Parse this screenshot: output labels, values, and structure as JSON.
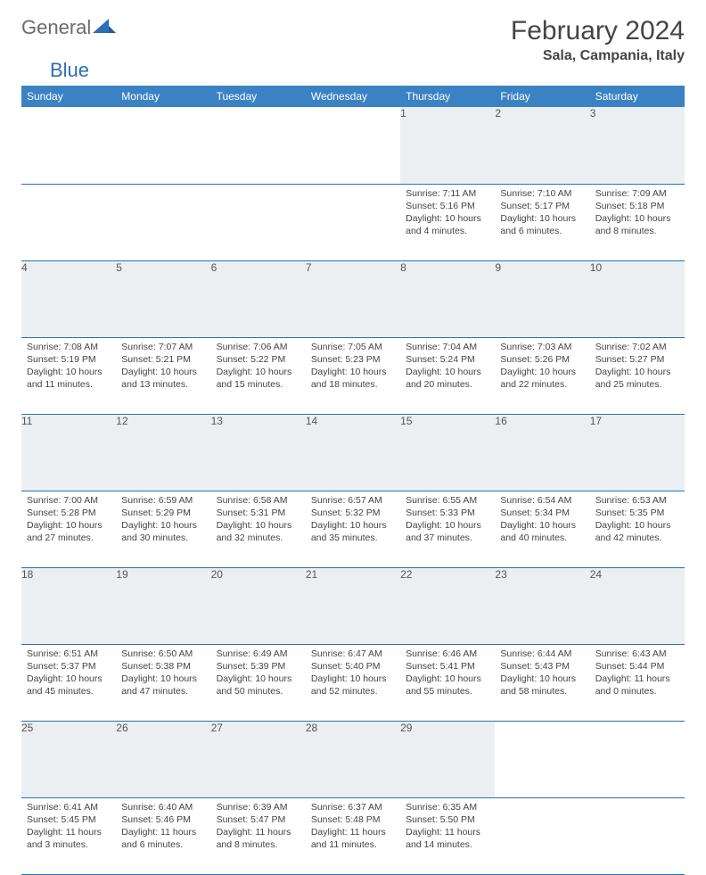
{
  "logo": {
    "part1": "General",
    "part2": "Blue"
  },
  "title": "February 2024",
  "location": "Sala, Campania, Italy",
  "colors": {
    "header_bg": "#3b82c4",
    "header_text": "#ffffff",
    "daynum_bg": "#eceff1",
    "row_border": "#2b6fb5",
    "logo_gray": "#6b6b6b",
    "logo_blue": "#2b6fb5"
  },
  "weekdays": [
    "Sunday",
    "Monday",
    "Tuesday",
    "Wednesday",
    "Thursday",
    "Friday",
    "Saturday"
  ],
  "weeks": [
    {
      "nums": [
        "",
        "",
        "",
        "",
        "1",
        "2",
        "3"
      ],
      "cells": [
        null,
        null,
        null,
        null,
        {
          "sr": "Sunrise: 7:11 AM",
          "ss": "Sunset: 5:16 PM",
          "dl": "Daylight: 10 hours and 4 minutes."
        },
        {
          "sr": "Sunrise: 7:10 AM",
          "ss": "Sunset: 5:17 PM",
          "dl": "Daylight: 10 hours and 6 minutes."
        },
        {
          "sr": "Sunrise: 7:09 AM",
          "ss": "Sunset: 5:18 PM",
          "dl": "Daylight: 10 hours and 8 minutes."
        }
      ]
    },
    {
      "nums": [
        "4",
        "5",
        "6",
        "7",
        "8",
        "9",
        "10"
      ],
      "cells": [
        {
          "sr": "Sunrise: 7:08 AM",
          "ss": "Sunset: 5:19 PM",
          "dl": "Daylight: 10 hours and 11 minutes."
        },
        {
          "sr": "Sunrise: 7:07 AM",
          "ss": "Sunset: 5:21 PM",
          "dl": "Daylight: 10 hours and 13 minutes."
        },
        {
          "sr": "Sunrise: 7:06 AM",
          "ss": "Sunset: 5:22 PM",
          "dl": "Daylight: 10 hours and 15 minutes."
        },
        {
          "sr": "Sunrise: 7:05 AM",
          "ss": "Sunset: 5:23 PM",
          "dl": "Daylight: 10 hours and 18 minutes."
        },
        {
          "sr": "Sunrise: 7:04 AM",
          "ss": "Sunset: 5:24 PM",
          "dl": "Daylight: 10 hours and 20 minutes."
        },
        {
          "sr": "Sunrise: 7:03 AM",
          "ss": "Sunset: 5:26 PM",
          "dl": "Daylight: 10 hours and 22 minutes."
        },
        {
          "sr": "Sunrise: 7:02 AM",
          "ss": "Sunset: 5:27 PM",
          "dl": "Daylight: 10 hours and 25 minutes."
        }
      ]
    },
    {
      "nums": [
        "11",
        "12",
        "13",
        "14",
        "15",
        "16",
        "17"
      ],
      "cells": [
        {
          "sr": "Sunrise: 7:00 AM",
          "ss": "Sunset: 5:28 PM",
          "dl": "Daylight: 10 hours and 27 minutes."
        },
        {
          "sr": "Sunrise: 6:59 AM",
          "ss": "Sunset: 5:29 PM",
          "dl": "Daylight: 10 hours and 30 minutes."
        },
        {
          "sr": "Sunrise: 6:58 AM",
          "ss": "Sunset: 5:31 PM",
          "dl": "Daylight: 10 hours and 32 minutes."
        },
        {
          "sr": "Sunrise: 6:57 AM",
          "ss": "Sunset: 5:32 PM",
          "dl": "Daylight: 10 hours and 35 minutes."
        },
        {
          "sr": "Sunrise: 6:55 AM",
          "ss": "Sunset: 5:33 PM",
          "dl": "Daylight: 10 hours and 37 minutes."
        },
        {
          "sr": "Sunrise: 6:54 AM",
          "ss": "Sunset: 5:34 PM",
          "dl": "Daylight: 10 hours and 40 minutes."
        },
        {
          "sr": "Sunrise: 6:53 AM",
          "ss": "Sunset: 5:35 PM",
          "dl": "Daylight: 10 hours and 42 minutes."
        }
      ]
    },
    {
      "nums": [
        "18",
        "19",
        "20",
        "21",
        "22",
        "23",
        "24"
      ],
      "cells": [
        {
          "sr": "Sunrise: 6:51 AM",
          "ss": "Sunset: 5:37 PM",
          "dl": "Daylight: 10 hours and 45 minutes."
        },
        {
          "sr": "Sunrise: 6:50 AM",
          "ss": "Sunset: 5:38 PM",
          "dl": "Daylight: 10 hours and 47 minutes."
        },
        {
          "sr": "Sunrise: 6:49 AM",
          "ss": "Sunset: 5:39 PM",
          "dl": "Daylight: 10 hours and 50 minutes."
        },
        {
          "sr": "Sunrise: 6:47 AM",
          "ss": "Sunset: 5:40 PM",
          "dl": "Daylight: 10 hours and 52 minutes."
        },
        {
          "sr": "Sunrise: 6:46 AM",
          "ss": "Sunset: 5:41 PM",
          "dl": "Daylight: 10 hours and 55 minutes."
        },
        {
          "sr": "Sunrise: 6:44 AM",
          "ss": "Sunset: 5:43 PM",
          "dl": "Daylight: 10 hours and 58 minutes."
        },
        {
          "sr": "Sunrise: 6:43 AM",
          "ss": "Sunset: 5:44 PM",
          "dl": "Daylight: 11 hours and 0 minutes."
        }
      ]
    },
    {
      "nums": [
        "25",
        "26",
        "27",
        "28",
        "29",
        "",
        ""
      ],
      "cells": [
        {
          "sr": "Sunrise: 6:41 AM",
          "ss": "Sunset: 5:45 PM",
          "dl": "Daylight: 11 hours and 3 minutes."
        },
        {
          "sr": "Sunrise: 6:40 AM",
          "ss": "Sunset: 5:46 PM",
          "dl": "Daylight: 11 hours and 6 minutes."
        },
        {
          "sr": "Sunrise: 6:39 AM",
          "ss": "Sunset: 5:47 PM",
          "dl": "Daylight: 11 hours and 8 minutes."
        },
        {
          "sr": "Sunrise: 6:37 AM",
          "ss": "Sunset: 5:48 PM",
          "dl": "Daylight: 11 hours and 11 minutes."
        },
        {
          "sr": "Sunrise: 6:35 AM",
          "ss": "Sunset: 5:50 PM",
          "dl": "Daylight: 11 hours and 14 minutes."
        },
        null,
        null
      ]
    }
  ]
}
